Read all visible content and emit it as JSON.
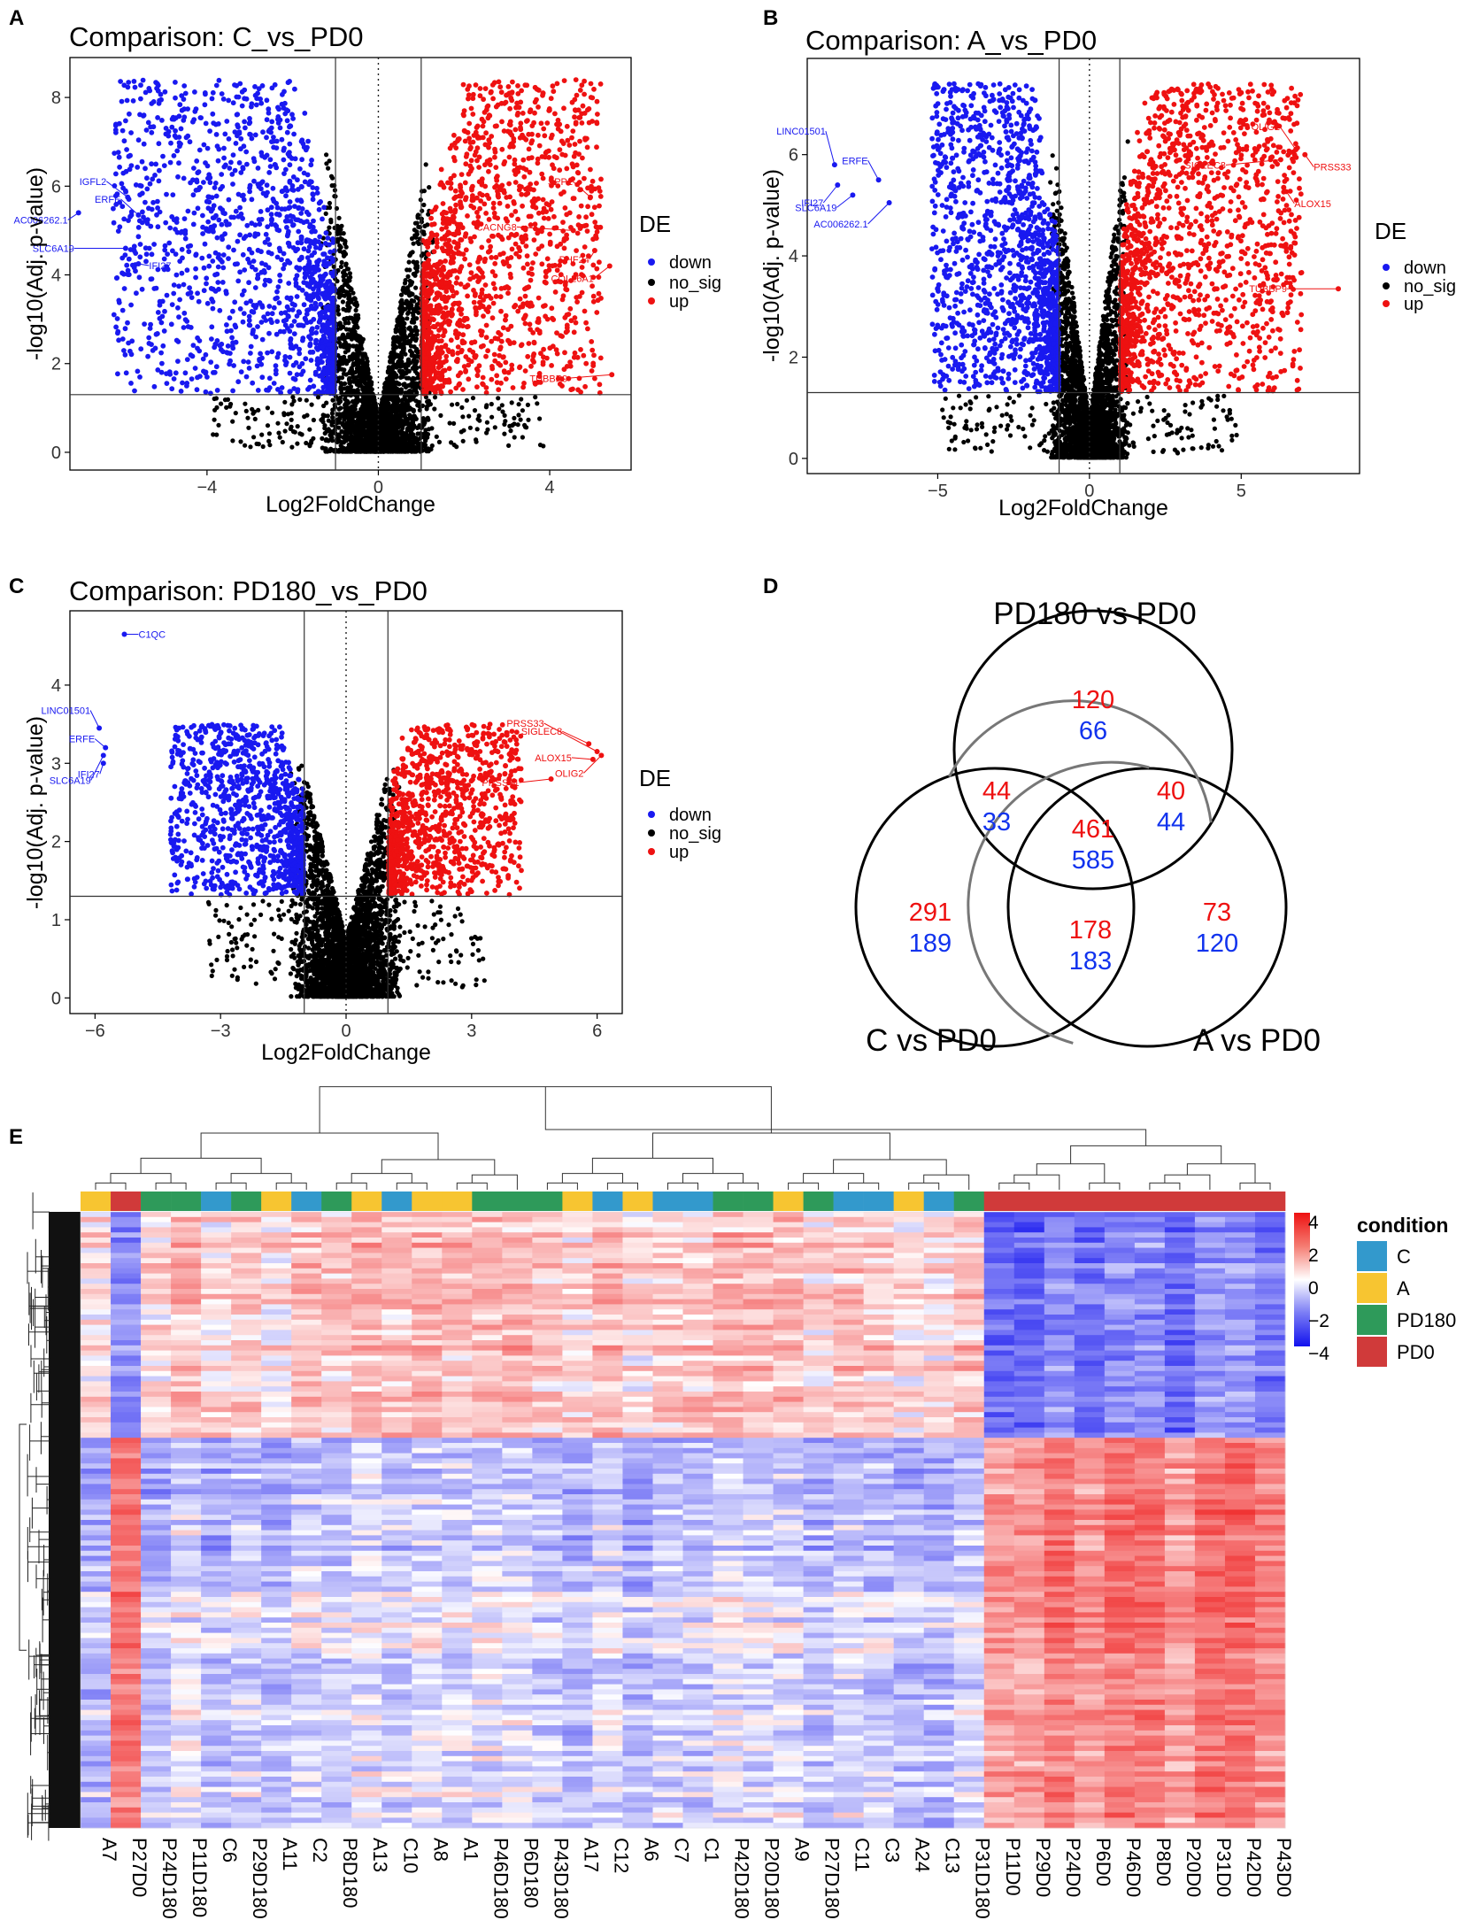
{
  "colors": {
    "down": "#1919f0",
    "no_sig": "#000000",
    "up": "#ee1111",
    "C": "#3399cc",
    "A": "#f7c531",
    "PD180": "#2e9a5a",
    "PD0": "#d03a3a",
    "venn_red": "#ee1111",
    "venn_blue": "#1133ee"
  },
  "chart_data": [
    {
      "panel": "A",
      "type": "scatter",
      "title": "Comparison: C_vs_PD0",
      "xlabel": "Log2FoldChange",
      "ylabel": "-log10(Adj. p-value)",
      "xlim": [
        -7.2,
        5.9
      ],
      "ylim": [
        -0.4,
        8.9
      ],
      "xticks": [
        -4,
        0,
        4
      ],
      "yticks": [
        0,
        2,
        4,
        6,
        8
      ],
      "x_cutoffs": [
        -1,
        1
      ],
      "y_cutoff": 1.3,
      "legend_title": "DE",
      "legend": [
        "down",
        "no_sig",
        "up"
      ],
      "seed": 11,
      "spread": {
        "left": -6.2,
        "right": 5.2,
        "ymax": 8.4
      },
      "counts": {
        "down": 1450,
        "no_sig": 2600,
        "up": 1450
      },
      "labels": [
        {
          "text": "IGFL2",
          "group": "down",
          "x": -5.85,
          "y": 5.75
        },
        {
          "text": "ERFE",
          "group": "down",
          "x": -5.6,
          "y": 5.35
        },
        {
          "text": "AC006262.1",
          "group": "down",
          "x": -7.0,
          "y": 5.4
        },
        {
          "text": "SLC6A19",
          "group": "down",
          "x": -5.9,
          "y": 4.6
        },
        {
          "text": "IFI27",
          "group": "down",
          "x": -5.6,
          "y": 4.25
        },
        {
          "text": "SPP1",
          "group": "up",
          "x": 4.95,
          "y": 5.75
        },
        {
          "text": "CACNG8",
          "group": "up",
          "x": 4.55,
          "y": 5.0
        },
        {
          "text": "PHF24",
          "group": "up",
          "x": 5.05,
          "y": 4.55
        },
        {
          "text": "COL26A1",
          "group": "up",
          "x": 5.4,
          "y": 4.2
        },
        {
          "text": "TUBBP9",
          "group": "up",
          "x": 5.45,
          "y": 1.75
        }
      ]
    },
    {
      "panel": "B",
      "type": "scatter",
      "title": "Comparison: A_vs_PD0",
      "xlabel": "Log2FoldChange",
      "ylabel": "-log10(Adj. p-value)",
      "xlim": [
        -9.3,
        8.9
      ],
      "ylim": [
        -0.3,
        7.9
      ],
      "xticks": [
        -5,
        0,
        5
      ],
      "yticks": [
        0,
        2,
        4,
        6
      ],
      "x_cutoffs": [
        -1,
        1
      ],
      "y_cutoff": 1.3,
      "legend_title": "DE",
      "legend": [
        "down",
        "no_sig",
        "up"
      ],
      "seed": 23,
      "spread": {
        "left": -5.2,
        "right": 7.0,
        "ymax": 7.4
      },
      "counts": {
        "down": 1450,
        "no_sig": 2700,
        "up": 1450
      },
      "labels": [
        {
          "text": "LINC01501",
          "group": "down",
          "x": -8.4,
          "y": 5.8
        },
        {
          "text": "IFI27",
          "group": "down",
          "x": -8.3,
          "y": 5.4
        },
        {
          "text": "SLC6A19",
          "group": "down",
          "x": -7.8,
          "y": 5.2
        },
        {
          "text": "ERFE",
          "group": "down",
          "x": -6.95,
          "y": 5.5
        },
        {
          "text": "AC006262.1",
          "group": "down",
          "x": -6.6,
          "y": 5.05
        },
        {
          "text": "OLIG2",
          "group": "up",
          "x": 6.8,
          "y": 6.1
        },
        {
          "text": "PRSS33",
          "group": "up",
          "x": 7.1,
          "y": 6.0
        },
        {
          "text": "SIGLEC8",
          "group": "up",
          "x": 6.3,
          "y": 5.9
        },
        {
          "text": "ALOX15",
          "group": "up",
          "x": 6.4,
          "y": 5.35
        },
        {
          "text": "TUBBP9",
          "group": "up",
          "x": 8.2,
          "y": 3.35
        }
      ]
    },
    {
      "panel": "C",
      "type": "scatter",
      "title": "Comparison: PD180_vs_PD0",
      "xlabel": "Log2FoldChange",
      "ylabel": "-log10(Adj. p-value)",
      "xlim": [
        -6.6,
        6.6
      ],
      "ylim": [
        -0.2,
        4.95
      ],
      "xticks": [
        -6,
        -3,
        0,
        3,
        6
      ],
      "yticks": [
        0,
        1,
        2,
        3,
        4
      ],
      "x_cutoffs": [
        -1,
        1
      ],
      "y_cutoff": 1.3,
      "legend_title": "DE",
      "legend": [
        "down",
        "no_sig",
        "up"
      ],
      "seed": 37,
      "spread": {
        "left": -4.2,
        "right": 4.2,
        "ymax": 3.5
      },
      "counts": {
        "down": 1050,
        "no_sig": 3000,
        "up": 1050
      },
      "labels": [
        {
          "text": "C1QC",
          "group": "down",
          "x": -5.3,
          "y": 4.65
        },
        {
          "text": "LINC01501",
          "group": "down",
          "x": -5.9,
          "y": 3.45
        },
        {
          "text": "ERFE",
          "group": "down",
          "x": -5.75,
          "y": 3.2
        },
        {
          "text": "IFI27",
          "group": "down",
          "x": -5.8,
          "y": 3.0
        },
        {
          "text": "SLC6A19",
          "group": "down",
          "x": -5.8,
          "y": 3.1
        },
        {
          "text": "PRSS33",
          "group": "up",
          "x": 6.0,
          "y": 3.15
        },
        {
          "text": "SIGLEC8",
          "group": "up",
          "x": 5.8,
          "y": 3.25
        },
        {
          "text": "ALOX15",
          "group": "up",
          "x": 5.9,
          "y": 3.05
        },
        {
          "text": "PRSS41",
          "group": "up",
          "x": 4.9,
          "y": 2.8
        },
        {
          "text": "OLIG2",
          "group": "up",
          "x": 6.1,
          "y": 3.1
        }
      ]
    },
    {
      "panel": "D",
      "type": "venn",
      "sets": [
        "PD180 vs PD0",
        "C vs PD0",
        "A vs PD0"
      ],
      "regions": [
        {
          "region": "PD180 only",
          "up": 120,
          "down": 66
        },
        {
          "region": "C and PD180",
          "up": 44,
          "down": 33
        },
        {
          "region": "A and PD180",
          "up": 40,
          "down": 44
        },
        {
          "region": "all three",
          "up": 461,
          "down": 585
        },
        {
          "region": "C only",
          "up": 291,
          "down": 189
        },
        {
          "region": "C and A",
          "up": 178,
          "down": 183
        },
        {
          "region": "A only",
          "up": 73,
          "down": 120
        }
      ]
    },
    {
      "panel": "E",
      "type": "heatmap",
      "value_range": [
        -4,
        4
      ],
      "colorbar_ticks": [
        "4",
        "2",
        "0",
        "−2",
        "−4"
      ],
      "legend_title": "condition",
      "legend": [
        "C",
        "A",
        "PD180",
        "PD0"
      ],
      "columns": [
        "A7",
        "P27D0",
        "P24D180",
        "P11D180",
        "C6",
        "P29D180",
        "A11",
        "C2",
        "P8D180",
        "A13",
        "C10",
        "A8",
        "A1",
        "P46D180",
        "P6D180",
        "P43D180",
        "A17",
        "C12",
        "A6",
        "C7",
        "C1",
        "P42D180",
        "P20D180",
        "A9",
        "P27D180",
        "C11",
        "C3",
        "A24",
        "C13",
        "P31D180",
        "P11D0",
        "P29D0",
        "P24D0",
        "P6D0",
        "P46D0",
        "P8D0",
        "P20D0",
        "P31D0",
        "P42D0",
        "P43D0"
      ],
      "conditions": [
        "A",
        "PD0",
        "PD180",
        "PD180",
        "C",
        "PD180",
        "A",
        "C",
        "PD180",
        "A",
        "C",
        "A",
        "A",
        "PD180",
        "PD180",
        "PD180",
        "A",
        "C",
        "A",
        "C",
        "C",
        "PD180",
        "PD180",
        "A",
        "PD180",
        "C",
        "C",
        "A",
        "C",
        "PD180",
        "PD0",
        "PD0",
        "PD0",
        "PD0",
        "PD0",
        "PD0",
        "PD0",
        "PD0",
        "PD0",
        "PD0"
      ],
      "seed": 53,
      "gene_clusters": [
        {
          "share": 0.365,
          "level": [
            0.7,
            -1.9
          ]
        },
        {
          "share": 0.25,
          "level": [
            -0.85,
            1.75
          ]
        },
        {
          "share": 0.385,
          "level": [
            -0.45,
            1.65
          ]
        }
      ]
    }
  ],
  "panel_labels": [
    "A",
    "B",
    "C",
    "D",
    "E"
  ]
}
